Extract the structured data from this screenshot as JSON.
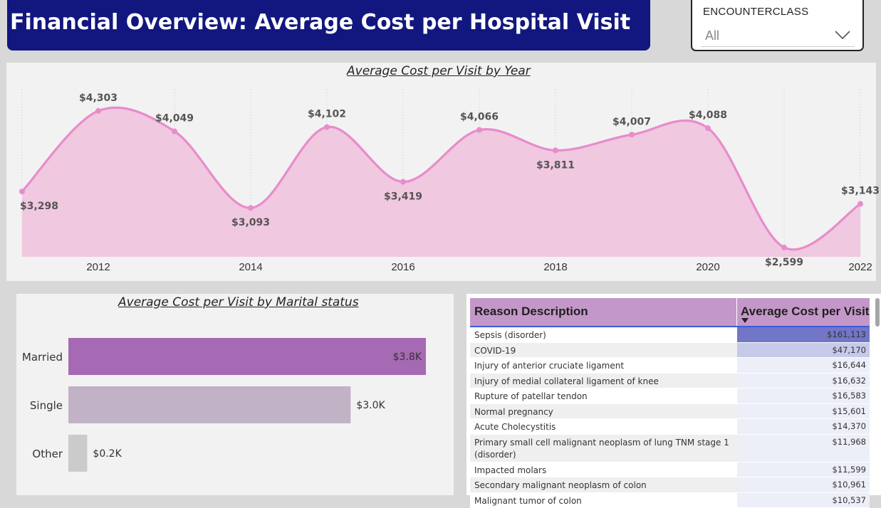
{
  "header": {
    "title": "Financial Overview: Average Cost per Hospital Visit"
  },
  "slicer": {
    "label": "ENCOUNTERCLASS",
    "value": "All",
    "icon": "chevron-down-icon"
  },
  "line_chart": {
    "title": "Average Cost per Visit by Year",
    "x_ticks": [
      "2012",
      "2014",
      "2016",
      "2018",
      "2020",
      "2022"
    ]
  },
  "bar_chart": {
    "title": "Average Cost per Visit by Marital status"
  },
  "table": {
    "columns": [
      "Reason Description",
      "Average Cost per Visit"
    ],
    "rows": [
      {
        "reason": "Sepsis (disorder)",
        "cost": "$161,113",
        "value": 161113
      },
      {
        "reason": "COVID-19",
        "cost": "$47,170",
        "value": 47170
      },
      {
        "reason": "Injury of anterior cruciate ligament",
        "cost": "$16,644",
        "value": 16644
      },
      {
        "reason": "Injury of medial collateral ligament of knee",
        "cost": "$16,632",
        "value": 16632
      },
      {
        "reason": "Rupture of patellar tendon",
        "cost": "$16,583",
        "value": 16583
      },
      {
        "reason": "Normal pregnancy",
        "cost": "$15,601",
        "value": 15601
      },
      {
        "reason": "Acute Cholecystitis",
        "cost": "$14,370",
        "value": 14370
      },
      {
        "reason": "Primary small cell malignant neoplasm of lung TNM stage 1 (disorder)",
        "cost": "$11,968",
        "value": 11968
      },
      {
        "reason": "Impacted molars",
        "cost": "$11,599",
        "value": 11599
      },
      {
        "reason": "Secondary malignant neoplasm of colon",
        "cost": "$10,961",
        "value": 10961
      },
      {
        "reason": "Malignant tumor of colon",
        "cost": "$10,537",
        "value": 10537
      }
    ],
    "colors": {
      "header": "#c497c9",
      "highlight_top": "#7176c6",
      "highlight_second": "#c7c9e9",
      "highlight_rest": "#eceef8"
    }
  },
  "chart_data": [
    {
      "type": "area",
      "title": "Average Cost per Visit by Year",
      "x": [
        2011,
        2012,
        2013,
        2014,
        2015,
        2016,
        2017,
        2018,
        2019,
        2020,
        2021,
        2022
      ],
      "values": [
        3298,
        4303,
        4049,
        3093,
        4102,
        3419,
        4066,
        3811,
        4007,
        4088,
        2599,
        3143
      ],
      "data_labels": [
        "$3,298",
        "$4,303",
        "$4,049",
        "$3,093",
        "$4,102",
        "$3,419",
        "$4,066",
        "$3,811",
        "$4,007",
        "$4,088",
        "$2,599",
        "$3,143"
      ],
      "x_ticks": [
        2012,
        2014,
        2016,
        2018,
        2020,
        2022
      ],
      "xlim": [
        2011,
        2022
      ],
      "ylim": [
        2500,
        4400
      ],
      "grid": "vertical dotted",
      "colors": {
        "line": "#e88ccb",
        "fill": "#f0c8e0"
      }
    },
    {
      "type": "bar",
      "orientation": "horizontal",
      "title": "Average Cost per Visit by Marital status",
      "categories": [
        "Married",
        "Single",
        "Other"
      ],
      "values": [
        3800,
        3000,
        200
      ],
      "data_labels": [
        "$3.8K",
        "$3.0K",
        "$0.2K"
      ],
      "xlim": [
        0,
        3800
      ],
      "colors": [
        "#a669b3",
        "#c1b2c6",
        "#cbcbcb"
      ]
    }
  ]
}
